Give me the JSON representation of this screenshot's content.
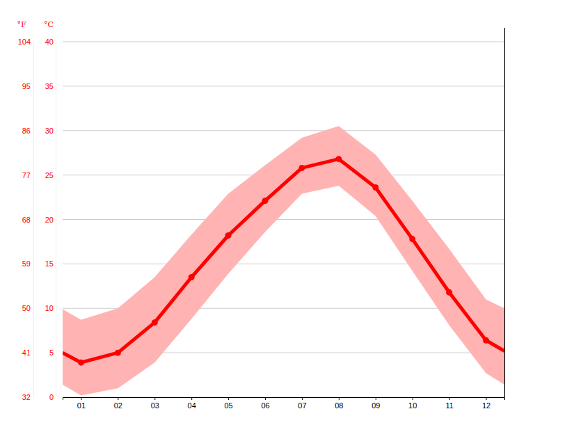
{
  "chart_data": {
    "type": "line",
    "x": [
      0.5,
      1,
      2,
      3,
      4,
      5,
      6,
      7,
      8,
      9,
      10,
      11,
      12,
      12.5
    ],
    "values": [
      5.0,
      3.9,
      5.0,
      8.4,
      13.5,
      18.2,
      22.1,
      25.8,
      26.8,
      23.6,
      17.8,
      11.8,
      6.4,
      5.2
    ],
    "min": [
      1.4,
      0.2,
      1.0,
      3.9,
      8.8,
      13.9,
      18.6,
      22.9,
      23.8,
      20.4,
      14.2,
      8.1,
      2.7,
      1.4
    ],
    "max": [
      9.9,
      8.7,
      10.0,
      13.5,
      18.3,
      22.9,
      26.1,
      29.2,
      30.5,
      27.3,
      22.1,
      16.7,
      11.0,
      10.0
    ],
    "color": "#ff0000",
    "marker": "circle",
    "xlim": [
      0.5,
      12.5
    ],
    "xticks": [
      {
        "value": 1,
        "label": "01"
      },
      {
        "value": 2,
        "label": "02"
      },
      {
        "value": 3,
        "label": "03"
      },
      {
        "value": 4,
        "label": "04"
      },
      {
        "value": 5,
        "label": "05"
      },
      {
        "value": 6,
        "label": "06"
      },
      {
        "value": 7,
        "label": "07"
      },
      {
        "value": 8,
        "label": "08"
      },
      {
        "value": 9,
        "label": "09"
      },
      {
        "value": 10,
        "label": "10"
      },
      {
        "value": 11,
        "label": "11"
      },
      {
        "value": 12,
        "label": "12"
      }
    ],
    "ylim": [
      0,
      40
    ],
    "yticks": [
      0,
      5,
      10,
      15,
      20,
      25,
      30,
      35,
      40
    ],
    "ylabel": "°C",
    "y2lim": [
      32,
      104
    ],
    "y2ticks": [
      32,
      41,
      50,
      59,
      68,
      77,
      86,
      95,
      104
    ],
    "y2label": "°F",
    "grid": true
  }
}
